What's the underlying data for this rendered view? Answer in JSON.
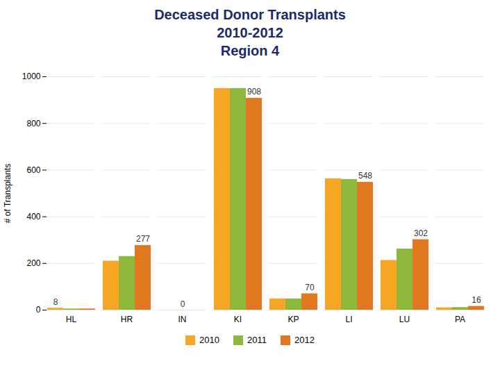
{
  "chart_data": {
    "type": "bar",
    "title": [
      "Deceased Donor Transplants",
      "2010-2012",
      "Region 4"
    ],
    "ylabel": "# of Transplants",
    "categories": [
      "HL",
      "HR",
      "IN",
      "KI",
      "KP",
      "LI",
      "LU",
      "PA"
    ],
    "series": [
      {
        "name": "2010",
        "color": "#F5A623",
        "values": [
          8,
          210,
          0,
          950,
          48,
          563,
          213,
          10
        ]
      },
      {
        "name": "2011",
        "color": "#8DB83C",
        "values": [
          5,
          230,
          0,
          950,
          48,
          560,
          262,
          11
        ]
      },
      {
        "name": "2012",
        "color": "#E07820",
        "values": [
          5,
          277,
          0,
          908,
          70,
          548,
          302,
          16
        ]
      }
    ],
    "annotations": [
      {
        "category": "HL",
        "series": "2010",
        "text": "8"
      },
      {
        "category": "HR",
        "series": "2012",
        "text": "277"
      },
      {
        "category": "IN",
        "series": "2011",
        "text": "0"
      },
      {
        "category": "KI",
        "series": "2012",
        "text": "908"
      },
      {
        "category": "KP",
        "series": "2012",
        "text": "70"
      },
      {
        "category": "LI",
        "series": "2012",
        "text": "548"
      },
      {
        "category": "LU",
        "series": "2012",
        "text": "302"
      },
      {
        "category": "PA",
        "series": "2012",
        "text": "16"
      }
    ],
    "ylim": [
      0,
      1000
    ],
    "yticks": [
      0,
      200,
      400,
      600,
      800,
      1000
    ],
    "grid": true,
    "legend": "bottom"
  }
}
